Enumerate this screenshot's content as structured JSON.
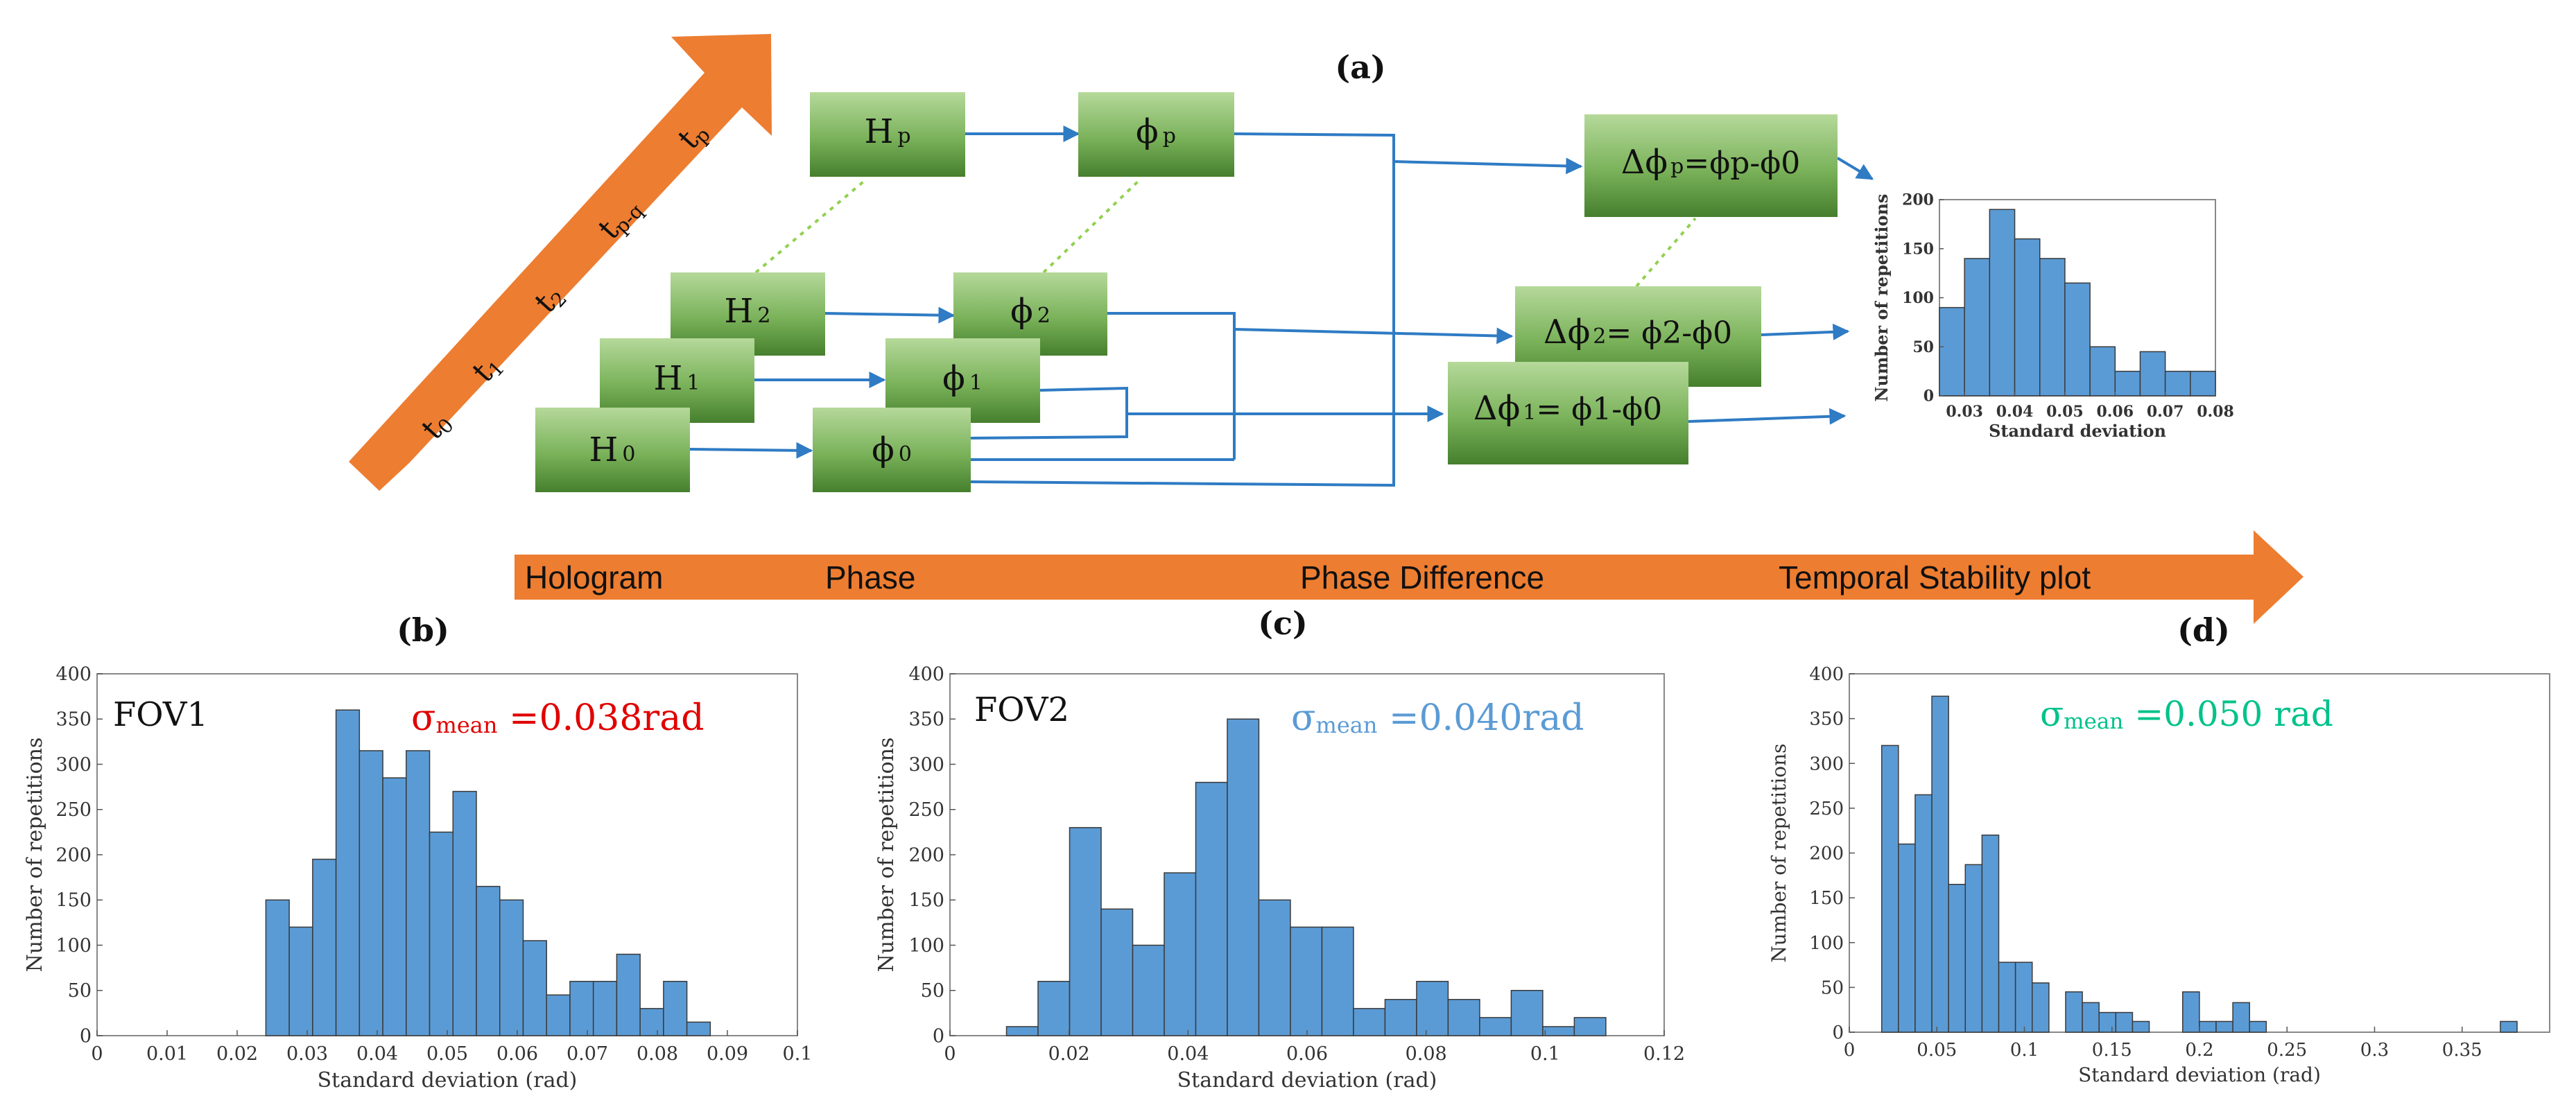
{
  "panel_labels": {
    "a": "(a)",
    "b": "(b)",
    "c": "(c)",
    "d": "(d)"
  },
  "time_arrow": {
    "color": "#ED7D31",
    "t0": "t",
    "t0_sub": "0",
    "t1": "t",
    "t1_sub": "1",
    "t2": "t",
    "t2_sub": "2",
    "tpq": "t",
    "tpq_sub": "p-q",
    "tp": "t",
    "tp_sub": "p"
  },
  "stage_arrow": {
    "color": "#ED7D31",
    "hologram": "Hologram",
    "phase": "Phase",
    "phase_difference": "Phase Difference",
    "temporal_stability": "Temporal Stability plot"
  },
  "boxes": {
    "h0": {
      "main": "H",
      "sub": "0"
    },
    "h1": {
      "main": "H",
      "sub": "1"
    },
    "h2": {
      "main": "H",
      "sub": "2"
    },
    "hp": {
      "main": "H",
      "sub": "p"
    },
    "phi0": {
      "main": "ϕ",
      "sub": "0"
    },
    "phi1": {
      "main": "ϕ",
      "sub": "1"
    },
    "phi2": {
      "main": "ϕ",
      "sub": "2"
    },
    "phip": {
      "main": "ϕ",
      "sub": "p"
    },
    "dphi1": {
      "main": "Δϕ",
      "sub": "1",
      "rest": "= ϕ1-ϕ0"
    },
    "dphi2": {
      "main": "Δϕ",
      "sub": "2",
      "rest": "= ϕ2-ϕ0"
    },
    "dphip": {
      "main": "Δϕ",
      "sub": "p",
      "rest": "=ϕp-ϕ0"
    }
  },
  "colors": {
    "box_top": "#A9D08E",
    "box_bottom": "#4E8A33",
    "line_blue": "#2F7BC4",
    "dot_green": "#92D050",
    "bar_fill": "#5B9BD5"
  },
  "chart_data": [
    {
      "id": "inset",
      "type": "bar",
      "title": "",
      "xlabel": "Standard deviation",
      "ylabel": "Number of repetitions",
      "xlim": [
        0.025,
        0.08
      ],
      "ylim": [
        0,
        200
      ],
      "xticks": [
        "0.03",
        "0.04",
        "0.05",
        "0.06",
        "0.07",
        "0.08"
      ],
      "yticks": [
        "0",
        "50",
        "100",
        "150",
        "200"
      ],
      "bin_start": 0.025,
      "bin_width": 0.005,
      "values": [
        90,
        140,
        190,
        160,
        140,
        115,
        50,
        25,
        45,
        25,
        25
      ]
    },
    {
      "id": "b",
      "type": "bar",
      "annotation": "FOV1",
      "sigma_symbol": "σ",
      "sigma_sub": "mean",
      "sigma_value": " =0.038rad",
      "sigma_color": "#E00000",
      "xlabel": "Standard deviation (rad)",
      "ylabel": "Number of repetitions",
      "xlim": [
        0,
        0.1
      ],
      "ylim": [
        0,
        400
      ],
      "xticks": [
        "0",
        "0.01",
        "0.02",
        "0.03",
        "0.04",
        "0.05",
        "0.06",
        "0.07",
        "0.08",
        "0.09",
        "0.1"
      ],
      "yticks": [
        "0",
        "50",
        "100",
        "150",
        "200",
        "250",
        "300",
        "350",
        "400"
      ],
      "bin_start": 0.0241,
      "bin_width": 0.00334,
      "values": [
        150,
        120,
        195,
        360,
        315,
        285,
        315,
        225,
        270,
        165,
        150,
        105,
        45,
        60,
        60,
        90,
        30,
        60,
        15
      ]
    },
    {
      "id": "c",
      "type": "bar",
      "annotation": "FOV2",
      "sigma_symbol": "σ",
      "sigma_sub": "mean",
      "sigma_value": " =0.040rad",
      "sigma_color": "#5B9BD5",
      "xlabel": "Standard deviation (rad)",
      "ylabel": "Number of repetitions",
      "xlim": [
        0,
        0.12
      ],
      "ylim": [
        0,
        400
      ],
      "xticks": [
        "0",
        "0.02",
        "0.04",
        "0.06",
        "0.08",
        "0.1",
        "0.12"
      ],
      "yticks": [
        "0",
        "50",
        "100",
        "150",
        "200",
        "250",
        "300",
        "350",
        "400"
      ],
      "bin_start": 0.0095,
      "bin_width": 0.0053,
      "values": [
        10,
        60,
        230,
        140,
        100,
        180,
        280,
        350,
        150,
        120,
        120,
        30,
        40,
        60,
        40,
        20,
        50,
        10,
        20
      ]
    },
    {
      "id": "d",
      "type": "bar",
      "sigma_symbol": "σ",
      "sigma_sub": "mean",
      "sigma_value": " =0.050 rad",
      "sigma_color": "#00C28A",
      "xlabel": "Standard deviation (rad)",
      "ylabel": "Number of repetitions",
      "xlim": [
        0,
        0.4
      ],
      "ylim": [
        0,
        400
      ],
      "xticks": [
        "0",
        "0.05",
        "0.1",
        "0.15",
        "0.2",
        "0.25",
        "0.3",
        "0.35"
      ],
      "yticks": [
        "0",
        "50",
        "100",
        "150",
        "200",
        "250",
        "300",
        "350",
        "400"
      ],
      "bin_start": 0.0185,
      "bin_width": 0.00955,
      "values": [
        320,
        210,
        265,
        375,
        165,
        187,
        220,
        78,
        78,
        55,
        0,
        45,
        33,
        22,
        22,
        12,
        0,
        0,
        45,
        12,
        12,
        33,
        12,
        0,
        0,
        0,
        0,
        0,
        0,
        0,
        0,
        0,
        0,
        0,
        0,
        0,
        0,
        12
      ]
    }
  ]
}
